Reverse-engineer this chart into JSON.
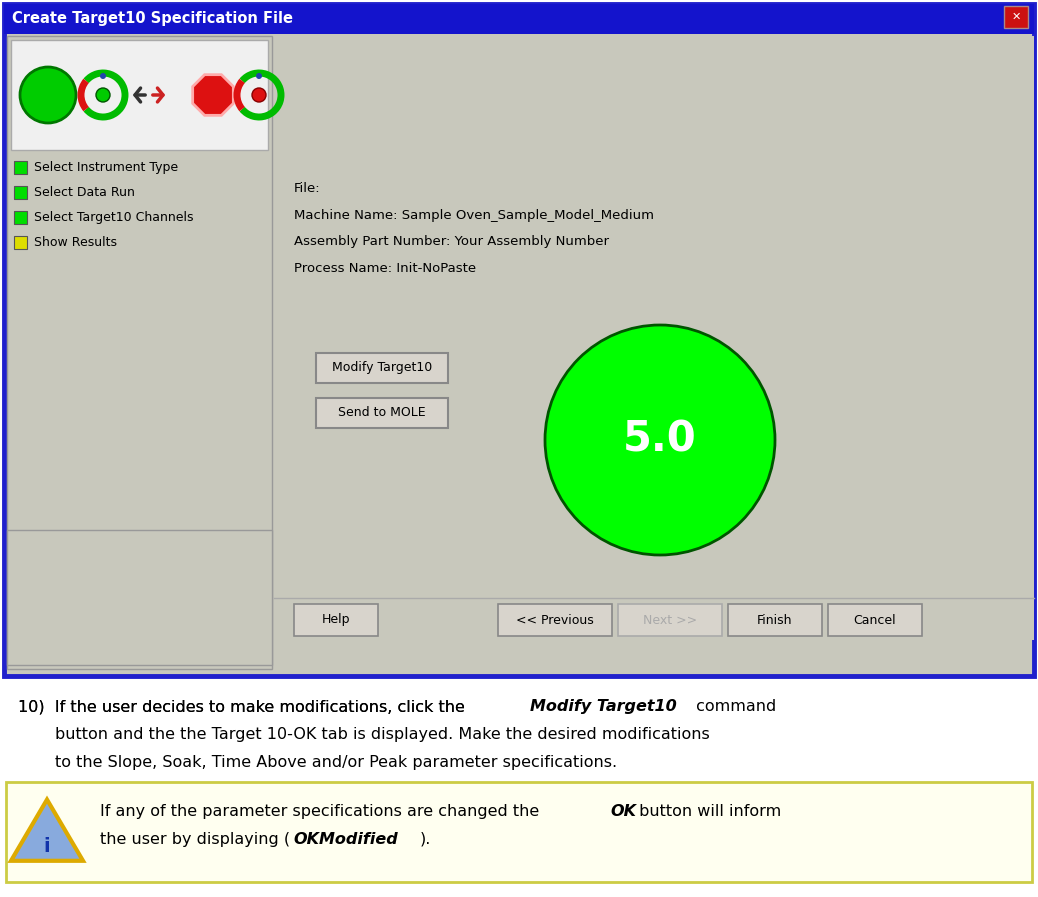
{
  "title": "Create Target10 Specification File",
  "title_bar_color": "#1414CC",
  "title_text_color": "#FFFFFF",
  "window_bg": "#C8C8BC",
  "left_panel_bg": "#C8C8BC",
  "right_panel_bg": "#C8C8BC",
  "icons_panel_bg": "#F0F0F0",
  "sidebar_items": [
    {
      "text": "Select Instrument Type",
      "color": "#00DD00"
    },
    {
      "text": "Select Data Run",
      "color": "#00DD00"
    },
    {
      "text": "Select Target10 Channels",
      "color": "#00DD00"
    },
    {
      "text": "Show Results",
      "color": "#DDDD00"
    }
  ],
  "file_info": [
    "File:",
    "Machine Name: Sample Oven_Sample_Model_Medium",
    "Assembly Part Number: Your Assembly Number",
    "Process Name: Init-NoPaste"
  ],
  "circle_color": "#00FF00",
  "circle_text": "5.0",
  "circle_text_color": "#FFFFFF",
  "buttons_bottom": [
    "Help",
    "<< Previous",
    "Next >>",
    "Finish",
    "Cancel"
  ],
  "next_grayed": true,
  "buttons_main": [
    "Modify Target10",
    "Send to MOLE"
  ],
  "note_bg": "#FFFFF0",
  "note_border": "#CCCC44",
  "bg_color": "#FFFFFF",
  "window_border_color": "#2020CC",
  "bottom_bar_color": "#C8C8BC"
}
